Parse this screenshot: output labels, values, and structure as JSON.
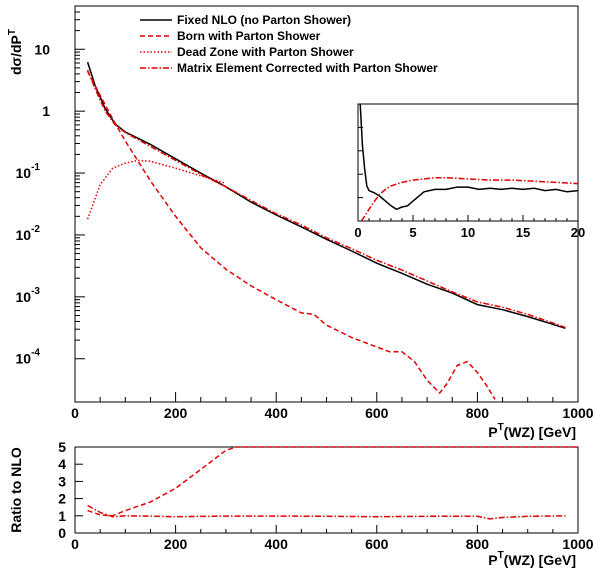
{
  "chart_data": [
    {
      "type": "line",
      "title": "",
      "ylabel": "dσ/dP",
      "ylabel_sup": "T",
      "xlabel": "P",
      "xlabel_sup": "T",
      "xlabel_rest": "(WZ)  [GeV]",
      "xlim": [
        0,
        1000
      ],
      "ylim_log": [
        2e-05,
        50
      ],
      "log_y": true,
      "x_ticks": [
        0,
        200,
        400,
        600,
        800,
        1000
      ],
      "x_tick_labels": [
        "0",
        "200",
        "400",
        "600",
        "800",
        "1000"
      ],
      "y_tick_labels": [
        {
          "base": "10",
          "exp": "",
          "value": 10
        },
        {
          "base": "1",
          "exp": "",
          "value": 1
        },
        {
          "base": "10",
          "exp": "-1",
          "value": 0.1
        },
        {
          "base": "10",
          "exp": "-2",
          "value": 0.01
        },
        {
          "base": "10",
          "exp": "-3",
          "value": 0.001
        },
        {
          "base": "10",
          "exp": "-4",
          "value": 0.0001
        }
      ],
      "legend_position": "top-right",
      "series": [
        {
          "name": "Fixed NLO (no Parton Shower)",
          "color": "#000000",
          "style": "solid",
          "x": [
            25,
            40,
            60,
            80,
            100,
            150,
            200,
            250,
            300,
            350,
            400,
            450,
            500,
            550,
            600,
            650,
            700,
            750,
            800,
            850,
            900,
            950,
            975
          ],
          "y": [
            6.2,
            2.6,
            1.1,
            0.62,
            0.46,
            0.29,
            0.17,
            0.1,
            0.06,
            0.034,
            0.021,
            0.0135,
            0.0085,
            0.0055,
            0.0035,
            0.0024,
            0.0016,
            0.00115,
            0.00075,
            0.00062,
            0.00048,
            0.00036,
            0.00031
          ]
        },
        {
          "name": "Born with Parton Shower",
          "color": "#e00000",
          "style": "dashed",
          "x": [
            25,
            50,
            75,
            100,
            150,
            200,
            250,
            300,
            350,
            400,
            450,
            475,
            500,
            550,
            600,
            625,
            650,
            675,
            700,
            725,
            740,
            760,
            780,
            800,
            820,
            835
          ],
          "y": [
            4.4,
            1.8,
            0.75,
            0.33,
            0.075,
            0.02,
            0.0062,
            0.0028,
            0.0015,
            0.0009,
            0.00055,
            0.00052,
            0.00035,
            0.00022,
            0.000155,
            0.00013,
            0.00013,
            9e-05,
            4.5e-05,
            2.8e-05,
            4e-05,
            7.8e-05,
            9e-05,
            6e-05,
            3.5e-05,
            2.2e-05
          ]
        },
        {
          "name": "Dead Zone with Parton Shower",
          "color": "#e00000",
          "style": "dotted",
          "x": [
            25,
            50,
            75,
            100,
            125,
            150,
            200,
            250,
            300
          ],
          "y": [
            0.018,
            0.065,
            0.12,
            0.145,
            0.16,
            0.155,
            0.12,
            0.09,
            0.068
          ]
        },
        {
          "name": "Matrix Element Corrected with Parton Shower",
          "color": "#e00000",
          "style": "dashdot",
          "x": [
            25,
            40,
            60,
            80,
            100,
            150,
            200,
            250,
            300,
            350,
            400,
            450,
            500,
            550,
            600,
            650,
            700,
            750,
            800,
            850,
            900,
            950,
            975
          ],
          "y": [
            4.6,
            2.3,
            1.0,
            0.6,
            0.45,
            0.27,
            0.16,
            0.095,
            0.06,
            0.036,
            0.022,
            0.0145,
            0.009,
            0.006,
            0.0039,
            0.0027,
            0.0018,
            0.0012,
            0.00083,
            0.00068,
            0.00052,
            0.00038,
            0.00032
          ]
        }
      ],
      "inset": {
        "xlim": [
          0,
          20
        ],
        "x_ticks": [
          0,
          5,
          10,
          15,
          20
        ],
        "x_tick_labels": [
          "0",
          "5",
          "10",
          "15",
          "20"
        ],
        "series": [
          {
            "color": "#000000",
            "style": "solid",
            "x": [
              0.2,
              0.4,
              0.6,
              0.8,
              1.0,
              1.5,
              2,
              2.5,
              3,
              3.5,
              4,
              4.5,
              5,
              6,
              7,
              8,
              9,
              10,
              11,
              12,
              13,
              14,
              15,
              16,
              17,
              18,
              19,
              20
            ],
            "y": [
              100,
              65,
              45,
              30,
              26,
              24,
              21,
              17,
              13,
              10,
              12,
              13,
              17,
              25,
              27,
              27,
              29,
              29,
              27,
              28,
              27,
              28,
              27,
              28,
              26,
              27,
              25,
              26
            ]
          },
          {
            "color": "#e00000",
            "style": "dashdot",
            "x": [
              0.3,
              0.6,
              1.0,
              1.5,
              2,
              2.5,
              3,
              4,
              5,
              6,
              7,
              8,
              10,
              12,
              14,
              16,
              18,
              20
            ],
            "y": [
              0,
              4,
              10,
              17,
              23,
              27,
              30,
              33,
              35,
              36,
              37,
              37,
              36,
              35,
              35,
              34,
              33,
              32
            ]
          }
        ]
      }
    },
    {
      "type": "line",
      "title": "",
      "ylabel": "Ratio to NLO",
      "xlabel": "P",
      "xlabel_sup": "T",
      "xlabel_rest": "(WZ)  [GeV]",
      "xlim": [
        0,
        1000
      ],
      "ylim": [
        0,
        5
      ],
      "x_ticks": [
        0,
        200,
        400,
        600,
        800,
        1000
      ],
      "x_tick_labels": [
        "0",
        "200",
        "400",
        "600",
        "800",
        "1000"
      ],
      "y_ticks": [
        0,
        1,
        2,
        3,
        4,
        5
      ],
      "y_tick_labels": [
        "0",
        "1",
        "2",
        "3",
        "4",
        "5"
      ],
      "series": [
        {
          "color": "#e00000",
          "style": "dashed",
          "x": [
            25,
            50,
            75,
            100,
            150,
            200,
            250,
            300,
            320,
            400,
            600,
            800,
            1000
          ],
          "y": [
            1.3,
            1.05,
            1.0,
            1.3,
            1.8,
            2.6,
            3.7,
            4.8,
            5.0,
            5.0,
            5.0,
            5.0,
            5.0
          ]
        },
        {
          "color": "#e00000",
          "style": "dashdot",
          "x": [
            25,
            50,
            75,
            100,
            150,
            200,
            300,
            400,
            500,
            600,
            700,
            800,
            825,
            850,
            900,
            975
          ],
          "y": [
            1.6,
            1.2,
            0.95,
            1.0,
            0.98,
            0.95,
            0.98,
            0.98,
            0.97,
            0.95,
            0.97,
            0.97,
            0.82,
            0.9,
            0.97,
            1.0
          ]
        }
      ]
    }
  ]
}
